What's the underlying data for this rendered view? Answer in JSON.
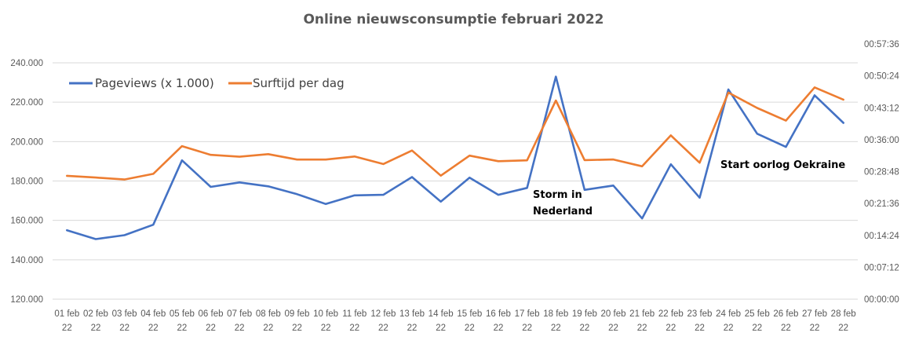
{
  "chart_data": {
    "type": "line",
    "title": "Online nieuwsconsumptie  februari 2022",
    "categories_line1": [
      "01 feb",
      "02 feb",
      "03 feb",
      "04 feb",
      "05 feb",
      "06 feb",
      "07 feb",
      "08 feb",
      "09 feb",
      "10 feb",
      "11 feb",
      "12 feb",
      "13 feb",
      "14 feb",
      "15 feb",
      "16 feb",
      "17 feb",
      "18 feb",
      "19 feb",
      "20 feb",
      "21 feb",
      "22 feb",
      "23 feb",
      "24 feb",
      "25 feb",
      "26 feb",
      "27 feb",
      "28 feb"
    ],
    "categories_line2": "22",
    "y_left": {
      "ticks": [
        "120.000",
        "140.000",
        "160.000",
        "180.000",
        "200.000",
        "220.000",
        "240.000"
      ],
      "min": 120000,
      "max": 240000
    },
    "y_right": {
      "ticks": [
        "00:00:00",
        "00:07:12",
        "00:14:24",
        "00:21:36",
        "00:28:48",
        "00:36:00",
        "00:43:12",
        "00:50:24",
        "00:57:36"
      ],
      "min_seconds": 0,
      "max_seconds": 3456
    },
    "series": [
      {
        "name": "Pageviews (x 1.000)",
        "color": "#4472c4",
        "axis": "left",
        "values": [
          155000,
          150500,
          152500,
          157800,
          190500,
          177000,
          179300,
          177300,
          173300,
          168300,
          172700,
          173000,
          182000,
          169500,
          181700,
          173000,
          176500,
          233000,
          175500,
          177700,
          161000,
          188500,
          171500,
          226500,
          204000,
          197300,
          223500,
          209500
        ]
      },
      {
        "name": "Surftijd per dag",
        "color": "#ed7d31",
        "axis": "right",
        "values": [
          1804,
          1778,
          1750,
          1832,
          2238,
          2110,
          2083,
          2121,
          2041,
          2041,
          2086,
          1976,
          2173,
          1806,
          2099,
          2017,
          2030,
          2905,
          2033,
          2043,
          1943,
          2395,
          1996,
          3021,
          2796,
          2611,
          3097,
          2918
        ]
      }
    ],
    "annotations": [
      {
        "text_lines": [
          "Storm in",
          "Nederland"
        ]
      },
      {
        "text_lines": [
          "Start oorlog Oekraine"
        ]
      }
    ],
    "legend_position": "top-left",
    "grid": true
  }
}
